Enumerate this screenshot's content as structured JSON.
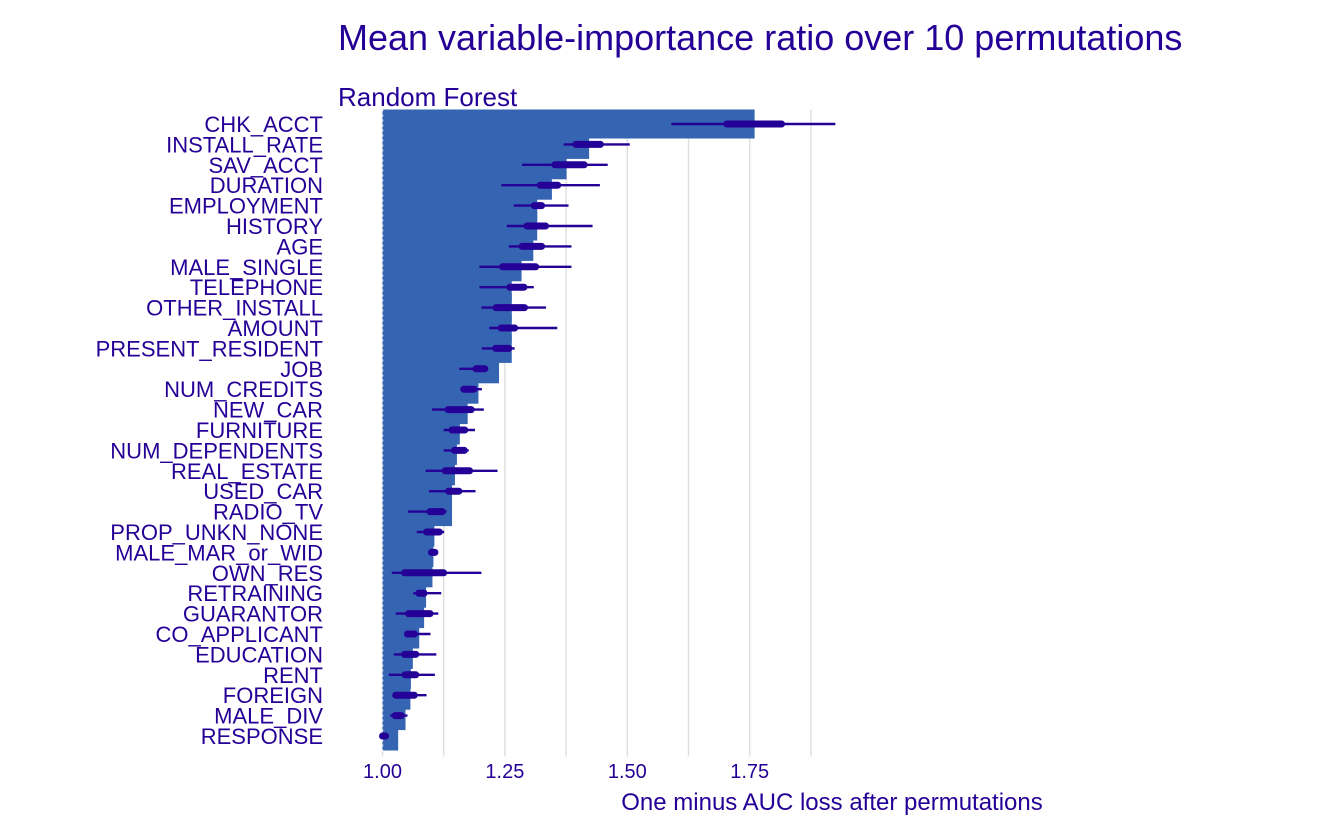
{
  "colors": {
    "bar": "#3564B2",
    "whisker": "#250096",
    "text": "#250096",
    "grid": "#dedede"
  },
  "chart_data": {
    "type": "bar",
    "orientation": "horizontal",
    "title": "Mean variable-importance ratio over 10 permutations",
    "subtitle": "Random Forest",
    "xlabel": "One minus AUC loss after permutations",
    "ylabel": "",
    "xlim": [
      0.975,
      1.93
    ],
    "baseline": 1.0,
    "x_ticks": [
      1.0,
      1.25,
      1.5,
      1.75
    ],
    "x_tick_labels": [
      "1.00",
      "1.25",
      "1.50",
      "1.75"
    ],
    "grid": "vertical",
    "legend": "none",
    "categories": [
      "CHK_ACCT",
      "INSTALL_RATE",
      "SAV_ACCT",
      "DURATION",
      "EMPLOYMENT",
      "HISTORY",
      "AGE",
      "MALE_SINGLE",
      "TELEPHONE",
      "OTHER_INSTALL",
      "AMOUNT",
      "PRESENT_RESIDENT",
      "JOB",
      "NUM_CREDITS",
      "NEW_CAR",
      "FURNITURE",
      "NUM_DEPENDENTS",
      "REAL_ESTATE",
      "USED_CAR",
      "RADIO_TV",
      "PROP_UNKN_NONE",
      "MALE_MAR_or_WID",
      "OWN_RES",
      "RETRAINING",
      "GUARANTOR",
      "CO_APPLICANT",
      "EDUCATION",
      "RENT",
      "FOREIGN",
      "MALE_DIV",
      "RESPONSE"
    ],
    "values": [
      1.76,
      1.422,
      1.376,
      1.346,
      1.316,
      1.316,
      1.308,
      1.284,
      1.264,
      1.264,
      1.264,
      1.264,
      1.238,
      1.196,
      1.174,
      1.158,
      1.152,
      1.148,
      1.142,
      1.142,
      1.106,
      1.104,
      1.102,
      1.089,
      1.085,
      1.075,
      1.062,
      1.058,
      1.057,
      1.047,
      1.032
    ],
    "whisker_min": [
      1.59,
      1.37,
      1.285,
      1.243,
      1.268,
      1.254,
      1.258,
      1.198,
      1.198,
      1.202,
      1.218,
      1.203,
      1.157,
      1.16,
      1.101,
      1.125,
      1.125,
      1.088,
      1.095,
      1.052,
      1.07,
      1.095,
      1.019,
      1.063,
      1.027,
      1.047,
      1.023,
      1.013,
      1.022,
      1.016,
      1.0
    ],
    "whisker_max": [
      1.925,
      1.505,
      1.46,
      1.444,
      1.38,
      1.429,
      1.386,
      1.386,
      1.309,
      1.334,
      1.357,
      1.27,
      1.207,
      1.203,
      1.207,
      1.189,
      1.176,
      1.235,
      1.19,
      1.131,
      1.126,
      1.113,
      1.202,
      1.12,
      1.114,
      1.098,
      1.11,
      1.107,
      1.09,
      1.051,
      1.003
    ],
    "box_low": [
      1.703,
      1.395,
      1.352,
      1.322,
      1.31,
      1.295,
      1.285,
      1.245,
      1.26,
      1.232,
      1.242,
      1.231,
      1.191,
      1.166,
      1.134,
      1.142,
      1.147,
      1.128,
      1.135,
      1.097,
      1.09,
      1.1,
      1.045,
      1.074,
      1.053,
      1.051,
      1.045,
      1.046,
      1.027,
      1.026,
      1.0
    ],
    "box_high": [
      1.815,
      1.445,
      1.412,
      1.358,
      1.325,
      1.333,
      1.325,
      1.313,
      1.289,
      1.29,
      1.27,
      1.258,
      1.209,
      1.187,
      1.181,
      1.168,
      1.167,
      1.178,
      1.156,
      1.122,
      1.116,
      1.107,
      1.125,
      1.085,
      1.097,
      1.065,
      1.068,
      1.068,
      1.065,
      1.038,
      1.002
    ]
  }
}
